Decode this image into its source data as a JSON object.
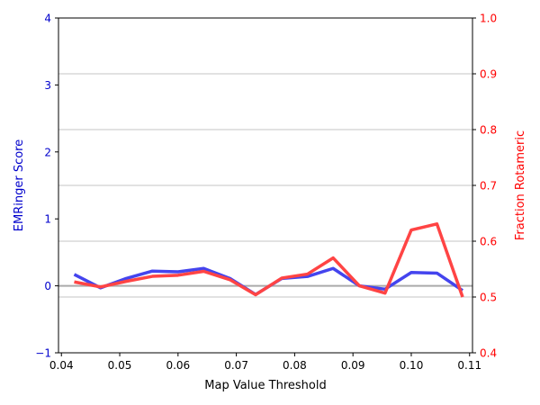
{
  "chart_data": {
    "type": "line",
    "title": "",
    "xlabel": "Map Value Threshold",
    "xlim": [
      0.0395,
      0.1105
    ],
    "xticks": [
      0.04,
      0.05,
      0.06,
      0.07,
      0.08,
      0.09,
      0.1,
      0.11
    ],
    "xtick_labels": [
      "0.04",
      "0.05",
      "0.06",
      "0.07",
      "0.08",
      "0.09",
      "0.10",
      "0.11"
    ],
    "y_left": {
      "label": "EMRinger Score",
      "lim": [
        -1,
        4
      ],
      "ticks": [
        -1,
        0,
        1,
        2,
        3,
        4
      ],
      "tick_labels": [
        "−1",
        "0",
        "1",
        "2",
        "3",
        "4"
      ],
      "color": "#0000cc"
    },
    "y_right": {
      "label": "Fraction Rotameric",
      "lim": [
        0.4,
        1.0
      ],
      "ticks": [
        0.4,
        0.5,
        0.6,
        0.7,
        0.8,
        0.9,
        1.0
      ],
      "tick_labels": [
        "0.4",
        "0.5",
        "0.6",
        "0.7",
        "0.8",
        "0.9",
        "1.0"
      ],
      "color": "#ff0000"
    },
    "zero_line": {
      "y": 0,
      "color": "#aaaaaa"
    },
    "grid": {
      "axis": "y_right",
      "color": "#b0b0b0"
    },
    "x": [
      0.0422,
      0.0467,
      0.0511,
      0.0556,
      0.06,
      0.0644,
      0.0689,
      0.0733,
      0.0778,
      0.0822,
      0.0866,
      0.0911,
      0.0955,
      0.1,
      0.1044,
      0.1088
    ],
    "series": [
      {
        "axis": "left",
        "color": "#4444ee",
        "values": [
          0.17,
          -0.03,
          0.11,
          0.22,
          0.21,
          0.26,
          0.11,
          -0.13,
          0.11,
          0.14,
          0.26,
          0.0,
          -0.05,
          0.2,
          0.19,
          -0.07
        ]
      },
      {
        "axis": "right",
        "color": "#ff4444",
        "values": [
          0.527,
          0.518,
          0.528,
          0.537,
          0.539,
          0.546,
          0.531,
          0.504,
          0.534,
          0.541,
          0.57,
          0.52,
          0.507,
          0.62,
          0.631,
          0.5
        ]
      }
    ]
  }
}
